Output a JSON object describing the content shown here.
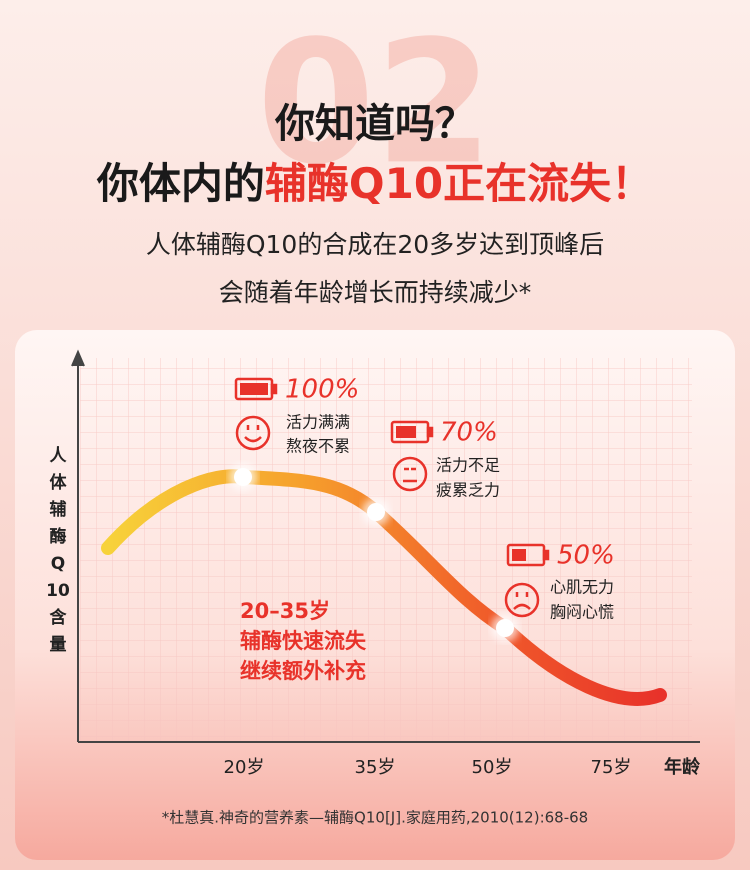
{
  "background_number": "02",
  "header": {
    "line1": "你知道吗？",
    "line2_plain": "你体内的",
    "line2_highlight": "辅酶Q10正在流失！"
  },
  "subtitle": [
    "人体辅酶Q10的合成在20多岁达到顶峰后",
    "会随着年龄增长而持续减少*"
  ],
  "graphic": {
    "y_axis_label": [
      "人",
      "体",
      "辅",
      "酶",
      "Q",
      "10",
      "含",
      "量"
    ],
    "x_labels": [
      "20岁",
      "35岁",
      "50岁",
      "75岁"
    ],
    "x_axis_label": "年龄",
    "callouts": [
      {
        "percent": "100%",
        "lines": [
          "活力满满",
          "熬夜不累"
        ]
      },
      {
        "percent": "70%",
        "lines": [
          "活力不足",
          "疲累乏力"
        ]
      },
      {
        "percent": "50%",
        "lines": [
          "心肌无力",
          "胸闷心慌"
        ]
      }
    ],
    "annotation": [
      "20–35岁",
      "辅酶快速流失",
      "继续额外补充"
    ]
  },
  "footnote": "*杜慧真.神奇的营养素—辅酶Q10[J].家庭用药,2010(12):68-68"
}
